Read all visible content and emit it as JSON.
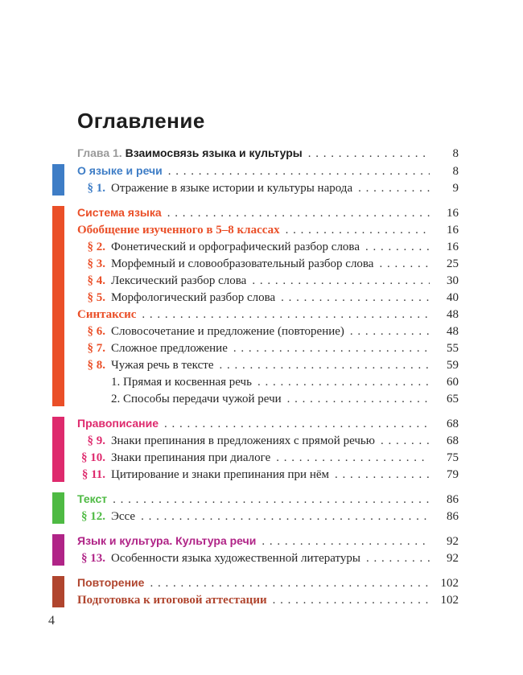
{
  "page": {
    "title": "Оглавление",
    "footer_page_number": "4"
  },
  "colors": {
    "blue": "#3e7dc6",
    "orange": "#ea4f28",
    "pink": "#de2a6d",
    "green": "#4eba43",
    "purple": "#b02487",
    "brown": "#b0452e",
    "gray": "#9a9a9a",
    "black": "#1d1d1d",
    "body": "#262626"
  },
  "toc": {
    "groups": [
      {
        "bar": null,
        "rows": [
          {
            "indent": 0,
            "page": "8",
            "parts": [
              {
                "text": "Глава 1. ",
                "font": "sans",
                "bold": true,
                "color": "gray"
              },
              {
                "text": "Взаимосвязь языка и культуры",
                "font": "sans",
                "bold": true,
                "color": "black"
              }
            ]
          }
        ]
      },
      {
        "bar": "blue",
        "rows": [
          {
            "indent": 0,
            "page": "8",
            "parts": [
              {
                "text": "О языке и речи",
                "font": "sans",
                "bold": true,
                "color": "blue"
              }
            ]
          },
          {
            "indent": 1,
            "prefix": {
              "text": "§ 1.",
              "color": "blue"
            },
            "page": "9",
            "parts": [
              {
                "text": "Отражение в языке истории и культуры народа",
                "font": "serif",
                "bold": false,
                "color": "body"
              }
            ]
          }
        ]
      },
      {
        "bar": "orange",
        "rows": [
          {
            "indent": 0,
            "page": "16",
            "parts": [
              {
                "text": "Система языка",
                "font": "sans",
                "bold": true,
                "color": "orange"
              }
            ]
          },
          {
            "indent": 0,
            "page": "16",
            "parts": [
              {
                "text": "Обобщение изученного в 5–8 классах",
                "font": "serif",
                "bold": true,
                "color": "orange"
              }
            ]
          },
          {
            "indent": 1,
            "prefix": {
              "text": "§ 2.",
              "color": "orange"
            },
            "page": "16",
            "parts": [
              {
                "text": "Фонетический и орфографический разбор слова",
                "font": "serif",
                "bold": false,
                "color": "body"
              }
            ]
          },
          {
            "indent": 1,
            "prefix": {
              "text": "§ 3.",
              "color": "orange"
            },
            "page": "25",
            "parts": [
              {
                "text": "Морфемный и словообразовательный разбор слова",
                "font": "serif",
                "bold": false,
                "color": "body"
              }
            ]
          },
          {
            "indent": 1,
            "prefix": {
              "text": "§ 4.",
              "color": "orange"
            },
            "page": "30",
            "parts": [
              {
                "text": "Лексический разбор слова",
                "font": "serif",
                "bold": false,
                "color": "body"
              }
            ]
          },
          {
            "indent": 1,
            "prefix": {
              "text": "§ 5.",
              "color": "orange"
            },
            "page": "40",
            "parts": [
              {
                "text": "Морфологический разбор слова",
                "font": "serif",
                "bold": false,
                "color": "body"
              }
            ]
          },
          {
            "indent": 0,
            "page": "48",
            "parts": [
              {
                "text": "Синтаксис",
                "font": "serif",
                "bold": true,
                "color": "orange"
              }
            ]
          },
          {
            "indent": 1,
            "prefix": {
              "text": "§ 6.",
              "color": "orange"
            },
            "page": "48",
            "parts": [
              {
                "text": "Словосочетание и предложение (повторение)",
                "font": "serif",
                "bold": false,
                "color": "body"
              }
            ]
          },
          {
            "indent": 1,
            "prefix": {
              "text": "§ 7.",
              "color": "orange"
            },
            "page": "55",
            "parts": [
              {
                "text": "Сложное предложение",
                "font": "serif",
                "bold": false,
                "color": "body"
              }
            ]
          },
          {
            "indent": 1,
            "prefix": {
              "text": "§ 8.",
              "color": "orange"
            },
            "page": "59",
            "parts": [
              {
                "text": "Чужая речь в тексте",
                "font": "serif",
                "bold": false,
                "color": "body"
              }
            ]
          },
          {
            "indent": 2,
            "page": "60",
            "parts": [
              {
                "text": "1. Прямая и косвенная речь",
                "font": "serif",
                "bold": false,
                "color": "body"
              }
            ]
          },
          {
            "indent": 2,
            "page": "65",
            "parts": [
              {
                "text": "2. Способы передачи чужой речи",
                "font": "serif",
                "bold": false,
                "color": "body"
              }
            ]
          }
        ]
      },
      {
        "bar": "pink",
        "rows": [
          {
            "indent": 0,
            "page": "68",
            "parts": [
              {
                "text": "Правописание",
                "font": "sans",
                "bold": true,
                "color": "pink"
              }
            ]
          },
          {
            "indent": 1,
            "prefix": {
              "text": "§ 9.",
              "color": "pink"
            },
            "page": "68",
            "parts": [
              {
                "text": "Знаки препинания в предложениях с прямой речью",
                "font": "serif",
                "bold": false,
                "color": "body"
              }
            ]
          },
          {
            "indent": 1,
            "prefix": {
              "text": "§ 10.",
              "color": "pink"
            },
            "page": "75",
            "parts": [
              {
                "text": "Знаки препинания при диалоге",
                "font": "serif",
                "bold": false,
                "color": "body"
              }
            ]
          },
          {
            "indent": 1,
            "prefix": {
              "text": "§ 11.",
              "color": "pink"
            },
            "page": "79",
            "parts": [
              {
                "text": "Цитирование и знаки препинания при нём",
                "font": "serif",
                "bold": false,
                "color": "body"
              }
            ]
          }
        ]
      },
      {
        "bar": "green",
        "rows": [
          {
            "indent": 0,
            "page": "86",
            "parts": [
              {
                "text": "Текст",
                "font": "sans",
                "bold": true,
                "color": "green"
              }
            ]
          },
          {
            "indent": 1,
            "prefix": {
              "text": "§ 12.",
              "color": "green"
            },
            "page": "86",
            "parts": [
              {
                "text": "Эссе",
                "font": "serif",
                "bold": false,
                "color": "body"
              }
            ]
          }
        ]
      },
      {
        "bar": "purple",
        "rows": [
          {
            "indent": 0,
            "page": "92",
            "parts": [
              {
                "text": "Язык и культура. Культура речи",
                "font": "sans",
                "bold": true,
                "color": "purple"
              }
            ]
          },
          {
            "indent": 1,
            "prefix": {
              "text": "§ 13.",
              "color": "purple"
            },
            "page": "92",
            "parts": [
              {
                "text": "Особенности языка художественной литературы",
                "font": "serif",
                "bold": false,
                "color": "body"
              }
            ]
          }
        ]
      },
      {
        "bar": "brown",
        "rows": [
          {
            "indent": 0,
            "page": "102",
            "parts": [
              {
                "text": "Повторение",
                "font": "sans",
                "bold": true,
                "color": "brown"
              }
            ]
          },
          {
            "indent": 0,
            "page": "102",
            "parts": [
              {
                "text": "Подготовка к итоговой аттестации",
                "font": "serif",
                "bold": true,
                "color": "brown"
              }
            ]
          }
        ]
      }
    ]
  }
}
